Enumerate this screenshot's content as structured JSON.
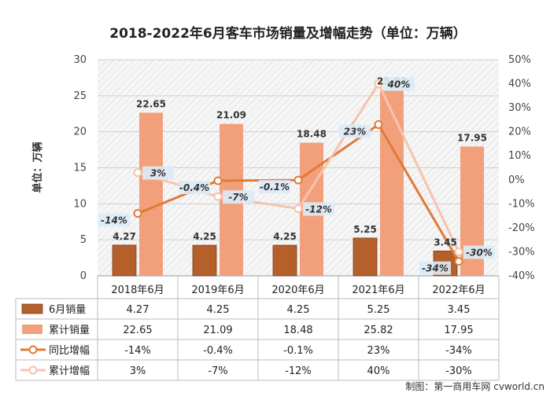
{
  "chart_data": {
    "type": "bar",
    "title": "2018-2022年6月客车市场销量及增幅走势（单位：万辆）",
    "ylabel": "单位：万辆",
    "ylim": [
      0,
      30
    ],
    "y2lim": [
      -40,
      50
    ],
    "yticks": [
      "0",
      "5",
      "10",
      "15",
      "20",
      "25",
      "30"
    ],
    "y2ticks": [
      "-40%",
      "-30%",
      "-20%",
      "-10%",
      "0%",
      "10%",
      "20%",
      "30%",
      "40%",
      "50%"
    ],
    "categories": [
      "2018年6月",
      "2019年6月",
      "2020年6月",
      "2021年6月",
      "2022年6月"
    ],
    "series": [
      {
        "name": "6月销量",
        "kind": "bar",
        "axis": "left",
        "color": "#b5602b",
        "values": [
          4.27,
          4.25,
          4.25,
          5.25,
          3.45
        ],
        "labels": [
          "4.27",
          "4.25",
          "4.25",
          "5.25",
          "3.45"
        ]
      },
      {
        "name": "累计销量",
        "kind": "bar",
        "axis": "left",
        "color": "#f2a07b",
        "values": [
          22.65,
          21.09,
          18.48,
          25.82,
          17.95
        ],
        "labels": [
          "22.65",
          "21.09",
          "18.48",
          "25.82",
          "17.95"
        ]
      },
      {
        "name": "同比增幅",
        "kind": "line",
        "axis": "right",
        "color": "#e07a3a",
        "values": [
          -14,
          -0.4,
          -0.1,
          23,
          -34
        ],
        "labels": [
          "-14%",
          "-0.4%",
          "-0.1%",
          "23%",
          "-34%"
        ]
      },
      {
        "name": "累计增幅",
        "kind": "line",
        "axis": "right",
        "color": "#f6c3ad",
        "values": [
          3,
          -7,
          -12,
          40,
          -30
        ],
        "labels": [
          "3%",
          "-7%",
          "-12%",
          "40%",
          "-30%"
        ]
      }
    ],
    "grid": true,
    "legend": "table-bottom"
  },
  "watermark": "制图：第一商用车网 cvworld.cn"
}
